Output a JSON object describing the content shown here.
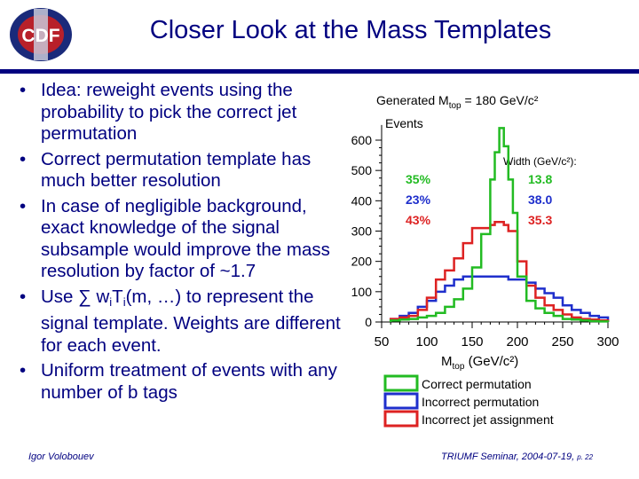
{
  "header": {
    "title": "Closer Look at the Mass Templates",
    "logo_text": "CDF"
  },
  "bullets": [
    {
      "text": "Idea: reweight events using the probability to pick the correct jet permutation"
    },
    {
      "text": "Correct permutation template has much better resolution"
    },
    {
      "text": "In case of negligible background, exact knowledge of the signal subsample would improve the mass resolution by factor of ~1.7"
    },
    {
      "pre": "Use ∑ w",
      "sub1": "i",
      "mid": "T",
      "sub2": "i",
      "post": "(m, …) to represent the signal template. Weights are different for each event."
    },
    {
      "text": "Uniform treatment of events with any number of b tags"
    }
  ],
  "footer": {
    "author": "Igor Volobouev",
    "seminar": "TRIUMF Seminar, 2004-07-19,",
    "page": "p. 22"
  },
  "chart_data": {
    "type": "histogram",
    "title_main": "Generated M",
    "title_sub": "top",
    "title_post": " = 180 GeV/c²",
    "ylabel": "Events",
    "xlabel_main": "M",
    "xlabel_sub": "top",
    "xlabel_post": " (GeV/c²)",
    "xlim": [
      50,
      300
    ],
    "ylim": [
      0,
      650
    ],
    "xticks": [
      50,
      100,
      150,
      200,
      250,
      300
    ],
    "yticks": [
      0,
      100,
      200,
      300,
      400,
      500,
      600
    ],
    "bin_edges": [
      60,
      70,
      80,
      90,
      100,
      110,
      120,
      130,
      140,
      150,
      160,
      170,
      175,
      180,
      185,
      190,
      195,
      200,
      210,
      220,
      230,
      240,
      250,
      260,
      270,
      280,
      290,
      300
    ],
    "width_header": "Width (GeV/c²):",
    "series": [
      {
        "name": "Correct permutation",
        "color": "#22bb22",
        "fraction": "35%",
        "width": "13.8",
        "values": [
          5,
          8,
          10,
          15,
          20,
          30,
          50,
          75,
          110,
          180,
          290,
          470,
          560,
          640,
          580,
          470,
          360,
          150,
          70,
          45,
          30,
          20,
          10,
          8,
          5,
          3,
          2
        ]
      },
      {
        "name": "Incorrect permutation",
        "color": "#1f2fcc",
        "fraction": "23%",
        "width": "38.0",
        "values": [
          10,
          20,
          30,
          50,
          70,
          100,
          120,
          140,
          150,
          150,
          150,
          150,
          150,
          150,
          150,
          140,
          140,
          140,
          130,
          110,
          95,
          80,
          55,
          40,
          30,
          20,
          15
        ]
      },
      {
        "name": "Incorrect jet assignment",
        "color": "#dd2222",
        "fraction": "43%",
        "width": "35.3",
        "values": [
          10,
          15,
          20,
          40,
          80,
          140,
          170,
          210,
          260,
          310,
          310,
          320,
          330,
          330,
          320,
          300,
          300,
          200,
          120,
          80,
          55,
          40,
          25,
          15,
          10,
          8,
          5
        ]
      }
    ]
  }
}
